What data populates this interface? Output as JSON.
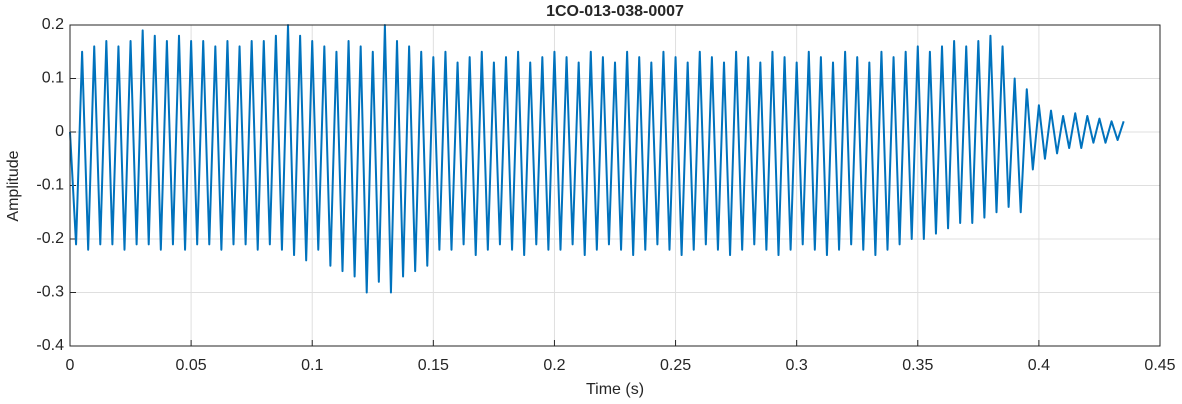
{
  "chart_data": {
    "type": "line",
    "title": "1CO-013-038-0007",
    "xlabel": "Time (s)",
    "ylabel": "Amplitude",
    "x": [
      0,
      0.0025,
      0.005,
      0.0075,
      0.01,
      0.0125,
      0.015,
      0.0175,
      0.02,
      0.0225,
      0.025,
      0.0275,
      0.03,
      0.0325,
      0.035,
      0.0375,
      0.04,
      0.0425,
      0.045,
      0.0475,
      0.05,
      0.0525,
      0.055,
      0.0575,
      0.06,
      0.0625,
      0.065,
      0.0675,
      0.07,
      0.0725,
      0.075,
      0.0775,
      0.08,
      0.0825,
      0.085,
      0.0875,
      0.09,
      0.0925,
      0.095,
      0.0975,
      0.1,
      0.1025,
      0.105,
      0.1075,
      0.11,
      0.1125,
      0.115,
      0.1175,
      0.12,
      0.1225,
      0.125,
      0.1275,
      0.13,
      0.1325,
      0.135,
      0.1375,
      0.14,
      0.1425,
      0.145,
      0.1475,
      0.15,
      0.1525,
      0.155,
      0.1575,
      0.16,
      0.1625,
      0.165,
      0.1675,
      0.17,
      0.1725,
      0.175,
      0.1775,
      0.18,
      0.1825,
      0.185,
      0.1875,
      0.19,
      0.1925,
      0.195,
      0.1975,
      0.2,
      0.2025,
      0.205,
      0.2075,
      0.21,
      0.2125,
      0.215,
      0.2175,
      0.22,
      0.2225,
      0.225,
      0.2275,
      0.23,
      0.2325,
      0.235,
      0.2375,
      0.24,
      0.2425,
      0.245,
      0.2475,
      0.25,
      0.2525,
      0.255,
      0.2575,
      0.26,
      0.2625,
      0.265,
      0.2675,
      0.27,
      0.2725,
      0.275,
      0.2775,
      0.28,
      0.2825,
      0.285,
      0.2875,
      0.29,
      0.2925,
      0.295,
      0.2975,
      0.3,
      0.3025,
      0.305,
      0.3075,
      0.31,
      0.3125,
      0.315,
      0.3175,
      0.32,
      0.3225,
      0.325,
      0.3275,
      0.33,
      0.3325,
      0.335,
      0.3375,
      0.34,
      0.3425,
      0.345,
      0.3475,
      0.35,
      0.3525,
      0.355,
      0.3575,
      0.36,
      0.3625,
      0.365,
      0.3675,
      0.37,
      0.3725,
      0.375,
      0.3775,
      0.38,
      0.3825,
      0.385,
      0.3875,
      0.39,
      0.3925,
      0.395,
      0.3975,
      0.4,
      0.4025,
      0.405,
      0.4075,
      0.41,
      0.4125,
      0.415,
      0.4175,
      0.42,
      0.4225,
      0.425,
      0.4275,
      0.43,
      0.4325,
      0.435
    ],
    "series": [
      {
        "color": "#0072bd",
        "values": [
          0,
          -0.21,
          0.15,
          -0.22,
          0.16,
          -0.21,
          0.17,
          -0.21,
          0.16,
          -0.22,
          0.17,
          -0.21,
          0.19,
          -0.21,
          0.18,
          -0.22,
          0.17,
          -0.21,
          0.18,
          -0.22,
          0.17,
          -0.21,
          0.17,
          -0.21,
          0.16,
          -0.22,
          0.17,
          -0.21,
          0.16,
          -0.21,
          0.17,
          -0.22,
          0.17,
          -0.21,
          0.18,
          -0.22,
          0.2,
          -0.23,
          0.18,
          -0.24,
          0.17,
          -0.22,
          0.16,
          -0.25,
          0.15,
          -0.26,
          0.17,
          -0.27,
          0.16,
          -0.3,
          0.15,
          -0.28,
          0.2,
          -0.3,
          0.17,
          -0.27,
          0.16,
          -0.26,
          0.15,
          -0.25,
          0.14,
          -0.22,
          0.15,
          -0.22,
          0.13,
          -0.21,
          0.14,
          -0.23,
          0.15,
          -0.22,
          0.13,
          -0.21,
          0.14,
          -0.22,
          0.15,
          -0.23,
          0.13,
          -0.21,
          0.14,
          -0.22,
          0.15,
          -0.22,
          0.14,
          -0.21,
          0.13,
          -0.23,
          0.15,
          -0.22,
          0.14,
          -0.21,
          0.13,
          -0.22,
          0.15,
          -0.23,
          0.14,
          -0.22,
          0.13,
          -0.21,
          0.15,
          -0.22,
          0.14,
          -0.23,
          0.13,
          -0.22,
          0.15,
          -0.21,
          0.14,
          -0.22,
          0.13,
          -0.23,
          0.15,
          -0.22,
          0.14,
          -0.21,
          0.13,
          -0.22,
          0.15,
          -0.23,
          0.14,
          -0.22,
          0.13,
          -0.21,
          0.15,
          -0.22,
          0.14,
          -0.23,
          0.13,
          -0.22,
          0.15,
          -0.21,
          0.14,
          -0.22,
          0.13,
          -0.23,
          0.15,
          -0.22,
          0.14,
          -0.21,
          0.15,
          -0.2,
          0.16,
          -0.2,
          0.15,
          -0.19,
          0.16,
          -0.18,
          0.17,
          -0.17,
          0.16,
          -0.17,
          0.17,
          -0.16,
          0.18,
          -0.15,
          0.16,
          -0.14,
          0.1,
          -0.15,
          0.08,
          -0.07,
          0.05,
          -0.05,
          0.04,
          -0.04,
          0.03,
          -0.03,
          0.035,
          -0.03,
          0.03,
          -0.02,
          0.025,
          -0.02,
          0.02,
          -0.015,
          0.02
        ]
      }
    ],
    "xlim": [
      0,
      0.45
    ],
    "xticks": [
      0,
      0.05,
      0.1,
      0.15,
      0.2,
      0.25,
      0.3,
      0.35,
      0.4,
      0.45
    ],
    "ylim": [
      -0.4,
      0.2
    ],
    "yticks": [
      -0.4,
      -0.3,
      -0.2,
      -0.1,
      0,
      0.1,
      0.2
    ],
    "grid": true
  }
}
